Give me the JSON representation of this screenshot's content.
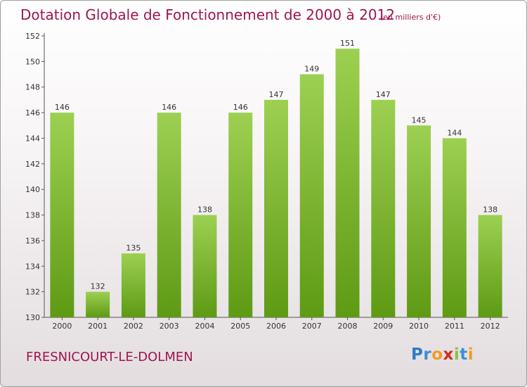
{
  "header": {
    "title": "Dotation Globale de Fonctionnement de 2000 à 2012",
    "subtitle": "(en milliers d'€)"
  },
  "footer": {
    "commune": "FRESNICOURT-LE-DOLMEN",
    "logo_letters": [
      {
        "char": "P",
        "color": "#2f79c8"
      },
      {
        "char": "r",
        "color": "#3f8dd6"
      },
      {
        "char": "o",
        "color": "#f29b1f"
      },
      {
        "char": "x",
        "color": "#d9291c"
      },
      {
        "char": "i",
        "color": "#8cc43c"
      },
      {
        "char": "t",
        "color": "#3f8dd6"
      },
      {
        "char": "i",
        "color": "#f29b1f"
      }
    ]
  },
  "colors": {
    "bar_light": "#9dd052",
    "bar_dark": "#5e9a14",
    "text_accent": "#a0154f",
    "axis": "#555555"
  },
  "chart_data": {
    "type": "bar",
    "categories": [
      "2000",
      "2001",
      "2002",
      "2003",
      "2004",
      "2005",
      "2006",
      "2007",
      "2008",
      "2009",
      "2010",
      "2011",
      "2012"
    ],
    "values": [
      146,
      132,
      135,
      146,
      138,
      146,
      147,
      149,
      151,
      147,
      145,
      144,
      138
    ],
    "data_labels": [
      "146",
      "132",
      "135",
      "146",
      "138",
      "146",
      "147",
      "149",
      "151",
      "147",
      "145",
      "144",
      "138"
    ],
    "ylim": [
      130,
      152
    ],
    "yticks": [
      130,
      132,
      134,
      136,
      138,
      140,
      142,
      144,
      146,
      148,
      150,
      152
    ],
    "title": "Dotation Globale de Fonctionnement de 2000 à 2012",
    "subtitle": "(en milliers d'€)",
    "xlabel": "",
    "ylabel": "",
    "grid": false,
    "legend": "none"
  }
}
